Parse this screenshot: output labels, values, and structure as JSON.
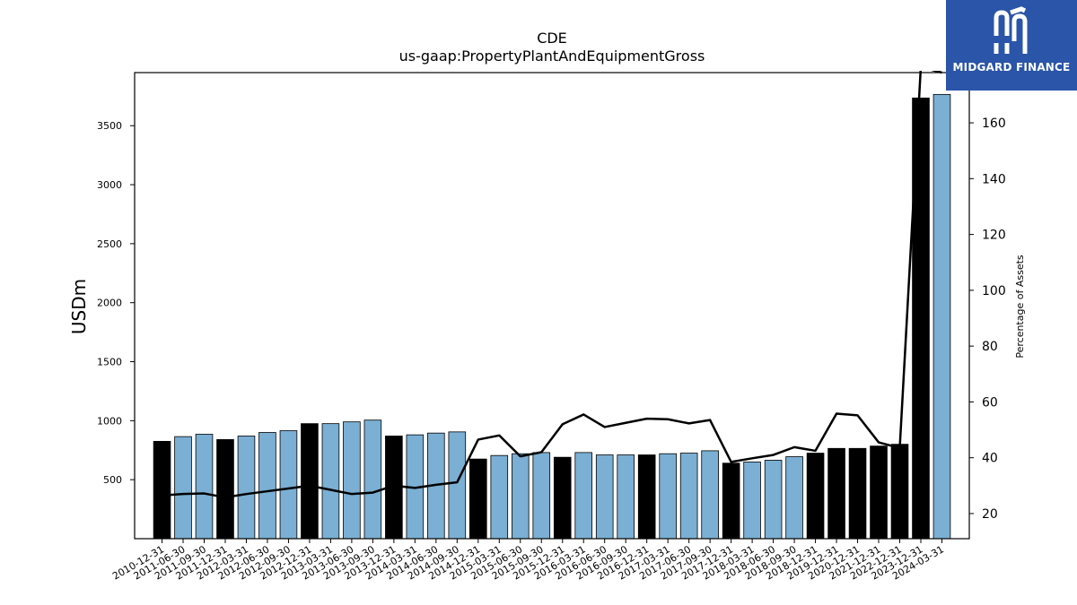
{
  "brand": {
    "name": "MIDGARD FINANCE",
    "logo_icon": "mf-monogram-icon",
    "bg_color": "#2a55a8"
  },
  "chart_data": {
    "type": "bar",
    "title": "CDE",
    "subtitle": "us-gaap:PropertyPlantAndEquipmentGross",
    "ylabel": "USDm",
    "y2label": "Percentage of Assets",
    "ylim": [
      0,
      3950
    ],
    "y2lim": [
      11,
      178
    ],
    "yticks": [
      500,
      1000,
      1500,
      2000,
      2500,
      3000,
      3500
    ],
    "y2ticks": [
      20,
      40,
      60,
      80,
      100,
      120,
      140,
      160
    ],
    "categories": [
      "2010-12-31",
      "2011-06-30",
      "2011-09-30",
      "2011-12-31",
      "2012-03-31",
      "2012-06-30",
      "2012-09-30",
      "2012-12-31",
      "2013-03-31",
      "2013-06-30",
      "2013-09-30",
      "2013-12-31",
      "2014-03-31",
      "2014-06-30",
      "2014-09-30",
      "2014-12-31",
      "2015-03-31",
      "2015-06-30",
      "2015-09-30",
      "2015-12-31",
      "2016-03-31",
      "2016-06-30",
      "2016-09-30",
      "2016-12-31",
      "2017-03-31",
      "2017-06-30",
      "2017-09-30",
      "2017-12-31",
      "2018-03-31",
      "2018-06-30",
      "2018-09-30",
      "2018-12-31",
      "2019-12-31",
      "2020-12-31",
      "2021-12-31",
      "2022-12-31",
      "2023-12-31",
      "2024-03-31"
    ],
    "series": [
      {
        "kind": "bar",
        "axis": "left",
        "values": [
          825,
          865,
          885,
          840,
          870,
          900,
          915,
          975,
          975,
          990,
          1005,
          870,
          880,
          895,
          905,
          675,
          705,
          720,
          730,
          690,
          730,
          710,
          710,
          710,
          720,
          725,
          745,
          640,
          650,
          665,
          695,
          725,
          765,
          765,
          785,
          800,
          3735,
          3765
        ],
        "annual": [
          true,
          false,
          false,
          true,
          false,
          false,
          false,
          true,
          false,
          false,
          false,
          true,
          false,
          false,
          false,
          true,
          false,
          false,
          false,
          true,
          false,
          false,
          false,
          true,
          false,
          false,
          false,
          true,
          false,
          false,
          false,
          true,
          true,
          true,
          true,
          true,
          true,
          false
        ],
        "colors": {
          "annual": "#000000",
          "quarterly": "#7bafd4"
        }
      },
      {
        "kind": "line",
        "axis": "right",
        "color": "#000000",
        "values": [
          26.5,
          27.0,
          27.2,
          25.8,
          27.0,
          28.0,
          29.0,
          30.0,
          28.5,
          27.0,
          27.5,
          30.0,
          29.2,
          30.3,
          31.2,
          46.5,
          48.0,
          40.5,
          42.0,
          52.0,
          55.5,
          51.0,
          52.5,
          54.0,
          53.8,
          52.3,
          53.5,
          38.5,
          39.8,
          41.0,
          43.8,
          42.5,
          55.8,
          55.2,
          45.5,
          43.5,
          180,
          178
        ]
      }
    ]
  }
}
